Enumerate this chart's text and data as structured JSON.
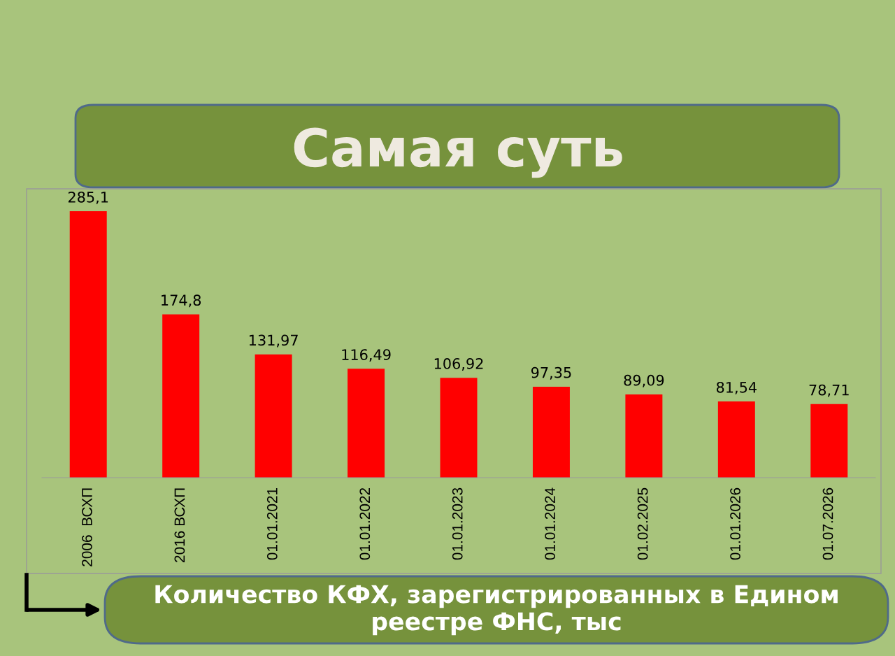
{
  "chart_data": {
    "type": "bar",
    "title": "Самая суть",
    "categories": [
      "2006  ВСХП",
      "2016 ВСХП",
      "01.01.2021",
      "01.01.2022",
      "01.01.2023",
      "01.01.2024",
      "01.02.2025",
      "01.01.2026",
      "01.07.2026"
    ],
    "values": [
      285.1,
      174.8,
      131.97,
      116.49,
      106.92,
      97.35,
      89.09,
      81.54,
      78.71
    ],
    "value_labels": [
      "285,1",
      "174,8",
      "131,97",
      "116,49",
      "106,92",
      "97,35",
      "89,09",
      "81,54",
      "78,71"
    ],
    "color": "#ff0000",
    "annotations": [
      "Количество КФХ, зарегистрированных в Едином реестре ФНС, тыс"
    ],
    "grid": false,
    "legend": false
  }
}
